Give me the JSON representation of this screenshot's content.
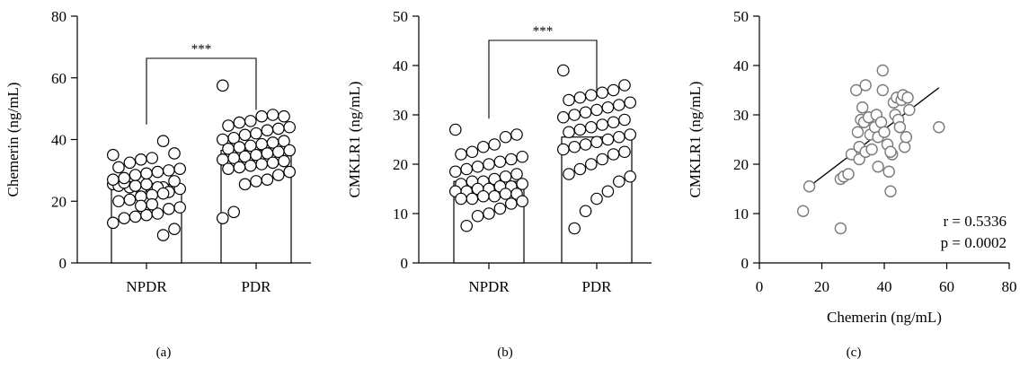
{
  "chart_data": [
    {
      "type": "bar",
      "panel_label": "(a)",
      "ylabel": "Chemerin (ng/mL)",
      "ylim": [
        0,
        80
      ],
      "yticks": [
        "0",
        "20",
        "40",
        "60",
        "80"
      ],
      "categories": [
        "NPDR",
        "PDR"
      ],
      "values": [
        24.5,
        36.5
      ],
      "significance": "***",
      "points": [
        [
          25.5,
          25.0,
          24.5,
          24.0,
          24.0,
          24.5,
          25.0,
          24.0,
          23.0,
          24.5,
          25.5,
          25.0,
          26.0,
          35.0,
          35.5,
          39.5,
          34.0,
          33.5,
          32.5,
          31.0,
          30.5,
          30.0,
          29.5,
          29.0,
          28.5,
          27.5,
          27.0,
          26.5,
          22.5,
          22.0,
          21.5,
          20.5,
          20.0,
          18.0,
          17.5,
          16.0,
          15.5,
          15.0,
          14.5,
          13.0,
          11.0,
          9.0,
          19.0,
          18.5
        ],
        [
          57.5,
          47.5,
          48.0,
          47.5,
          46.0,
          45.5,
          44.5,
          44.0,
          43.5,
          43.0,
          42.0,
          41.5,
          40.5,
          40.0,
          39.5,
          39.0,
          38.5,
          38.0,
          37.5,
          37.0,
          36.5,
          36.0,
          35.5,
          35.0,
          34.5,
          34.0,
          33.5,
          33.0,
          32.5,
          32.0,
          31.5,
          31.0,
          30.5,
          29.5,
          28.5,
          27.0,
          26.5,
          25.5,
          16.5,
          14.5
        ]
      ]
    },
    {
      "type": "bar",
      "panel_label": "(b)",
      "ylabel": "CMKLR1 (ng/mL)",
      "ylim": [
        0,
        50
      ],
      "yticks": [
        "0",
        "10",
        "20",
        "30",
        "40",
        "50"
      ],
      "categories": [
        "NPDR",
        "PDR"
      ],
      "values": [
        16.5,
        25.5
      ],
      "significance": "***",
      "points": [
        [
          27.0,
          26.0,
          25.5,
          24.0,
          23.5,
          22.5,
          22.0,
          21.5,
          21.0,
          20.5,
          20.0,
          19.5,
          19.0,
          18.5,
          18.0,
          17.5,
          17.0,
          16.5,
          16.5,
          16.0,
          16.0,
          15.5,
          15.5,
          15.0,
          15.0,
          14.5,
          14.5,
          14.0,
          14.0,
          13.5,
          13.5,
          13.0,
          13.0,
          12.5,
          12.0,
          11.0,
          10.0,
          9.5,
          7.5
        ],
        [
          39.0,
          36.0,
          35.0,
          34.5,
          34.0,
          33.5,
          33.0,
          32.5,
          32.0,
          31.5,
          31.0,
          30.5,
          30.0,
          29.5,
          29.0,
          28.5,
          28.0,
          27.5,
          27.0,
          26.5,
          26.0,
          25.5,
          25.0,
          24.5,
          24.0,
          23.5,
          23.0,
          22.5,
          22.0,
          21.0,
          20.0,
          19.0,
          18.0,
          17.5,
          16.5,
          14.5,
          13.0,
          10.5,
          7.0
        ]
      ]
    },
    {
      "type": "scatter",
      "panel_label": "(c)",
      "xlabel": "Chemerin (ng/mL)",
      "ylabel": "CMKLR1 (ng/mL)",
      "xlim": [
        0,
        80
      ],
      "ylim": [
        0,
        50
      ],
      "xticks": [
        "0",
        "20",
        "40",
        "60",
        "80"
      ],
      "yticks": [
        "0",
        "10",
        "20",
        "30",
        "40",
        "50"
      ],
      "annotations": [
        "r = 0.5336",
        "p = 0.0002"
      ],
      "fit_line": [
        [
          16,
          15.5
        ],
        [
          57.5,
          35.5
        ]
      ],
      "points": [
        [
          14.0,
          10.5
        ],
        [
          16.0,
          15.5
        ],
        [
          26.0,
          7.0
        ],
        [
          26.0,
          17.0
        ],
        [
          27.0,
          17.5
        ],
        [
          28.5,
          18.0
        ],
        [
          29.5,
          22.0
        ],
        [
          31.0,
          35.0
        ],
        [
          31.5,
          26.5
        ],
        [
          32.0,
          23.5
        ],
        [
          32.0,
          21.0
        ],
        [
          32.5,
          29.0
        ],
        [
          33.0,
          31.5
        ],
        [
          33.5,
          28.5
        ],
        [
          34.0,
          22.5
        ],
        [
          34.0,
          36.0
        ],
        [
          35.0,
          29.5
        ],
        [
          35.5,
          26.0
        ],
        [
          36.0,
          23.0
        ],
        [
          37.0,
          27.5
        ],
        [
          37.5,
          30.0
        ],
        [
          38.0,
          25.5
        ],
        [
          38.0,
          19.5
        ],
        [
          39.0,
          28.5
        ],
        [
          39.5,
          35.0
        ],
        [
          39.5,
          39.0
        ],
        [
          40.0,
          26.5
        ],
        [
          41.0,
          24.0
        ],
        [
          41.5,
          18.5
        ],
        [
          42.0,
          14.5
        ],
        [
          42.5,
          22.0
        ],
        [
          43.0,
          32.5
        ],
        [
          43.5,
          30.0
        ],
        [
          44.0,
          33.5
        ],
        [
          44.5,
          29.0
        ],
        [
          45.0,
          27.5
        ],
        [
          45.5,
          33.0
        ],
        [
          46.0,
          34.0
        ],
        [
          46.5,
          23.5
        ],
        [
          47.0,
          25.5
        ],
        [
          47.5,
          33.5
        ],
        [
          48.0,
          31.0
        ],
        [
          57.5,
          27.5
        ],
        [
          42.0,
          22.5
        ]
      ]
    }
  ]
}
